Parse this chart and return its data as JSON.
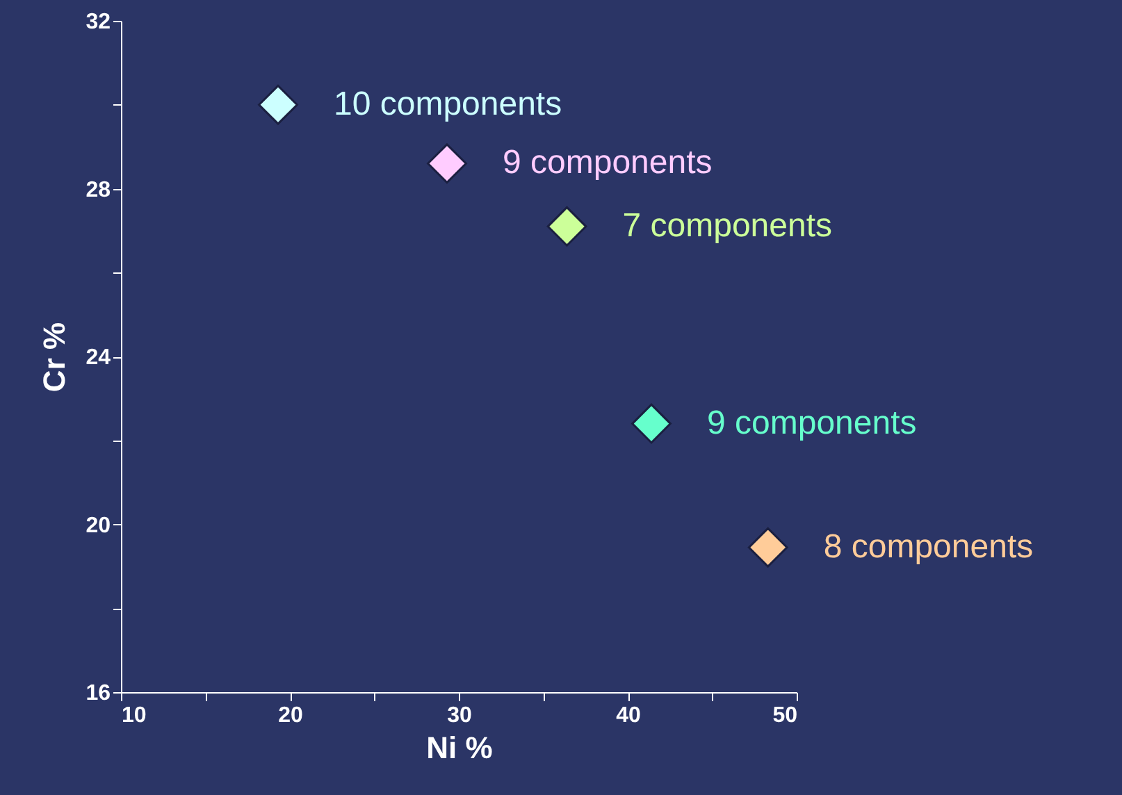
{
  "chart_data": {
    "type": "scatter",
    "xlabel": "Ni %",
    "ylabel": "Cr %",
    "marker": "diamond",
    "grid": false,
    "xlim": [
      10,
      50
    ],
    "ylim": [
      16,
      32
    ],
    "xticks": [
      10,
      {
        "value": 15,
        "label": null
      },
      20,
      {
        "value": 25,
        "label": null
      },
      30,
      {
        "value": 35,
        "label": null
      },
      40,
      {
        "value": 45,
        "label": null
      },
      50
    ],
    "yticks": [
      16,
      {
        "value": 18,
        "label": null
      },
      20,
      {
        "value": 22,
        "label": null
      },
      24,
      {
        "value": 26,
        "label": null
      },
      28,
      {
        "value": 30,
        "label": null
      },
      32
    ],
    "series": [
      {
        "name": "10 components",
        "color": "#ccffff",
        "x": [
          19.3
        ],
        "values": [
          30.0
        ]
      },
      {
        "name": "9 components",
        "color": "#ffccff",
        "x": [
          29.3
        ],
        "values": [
          28.6
        ]
      },
      {
        "name": "7 components",
        "color": "#ccff99",
        "x": [
          36.4
        ],
        "values": [
          27.1
        ]
      },
      {
        "name": "9 components",
        "color": "#66ffcc",
        "x": [
          41.4
        ],
        "values": [
          22.4
        ]
      },
      {
        "name": "8 components",
        "color": "#ffcc99",
        "x": [
          48.3
        ],
        "values": [
          19.45
        ]
      }
    ]
  }
}
